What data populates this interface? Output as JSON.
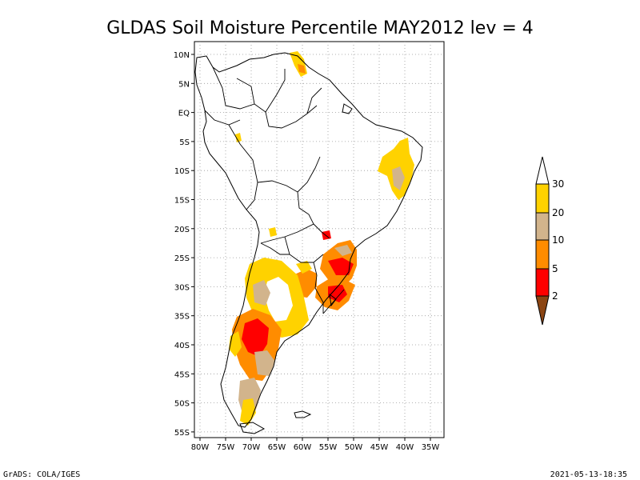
{
  "title": "GLDAS Soil Moisture Percentile MAY2012 lev = 4",
  "footer_left": "GrADS: COLA/IGES",
  "footer_right": "2021-05-13-18:35",
  "map": {
    "lat_ticks": [
      "10N",
      "5N",
      "EQ",
      "5S",
      "10S",
      "15S",
      "20S",
      "25S",
      "30S",
      "35S",
      "40S",
      "45S",
      "50S",
      "55S"
    ],
    "lon_ticks": [
      "80W",
      "75W",
      "70W",
      "65W",
      "60W",
      "55W",
      "50W",
      "45W",
      "40W",
      "35W"
    ],
    "grid": true
  },
  "colorbar": {
    "labels": [
      "30",
      "20",
      "10",
      "5",
      "2"
    ],
    "colors": {
      "top_arrow": "#ffffff",
      "c20_30": "#ffd200",
      "c10_20": "#d2b48c",
      "c5_10": "#ff8c00",
      "c2_5": "#ff0000",
      "bottom_arrow": "#8b4513"
    }
  }
}
